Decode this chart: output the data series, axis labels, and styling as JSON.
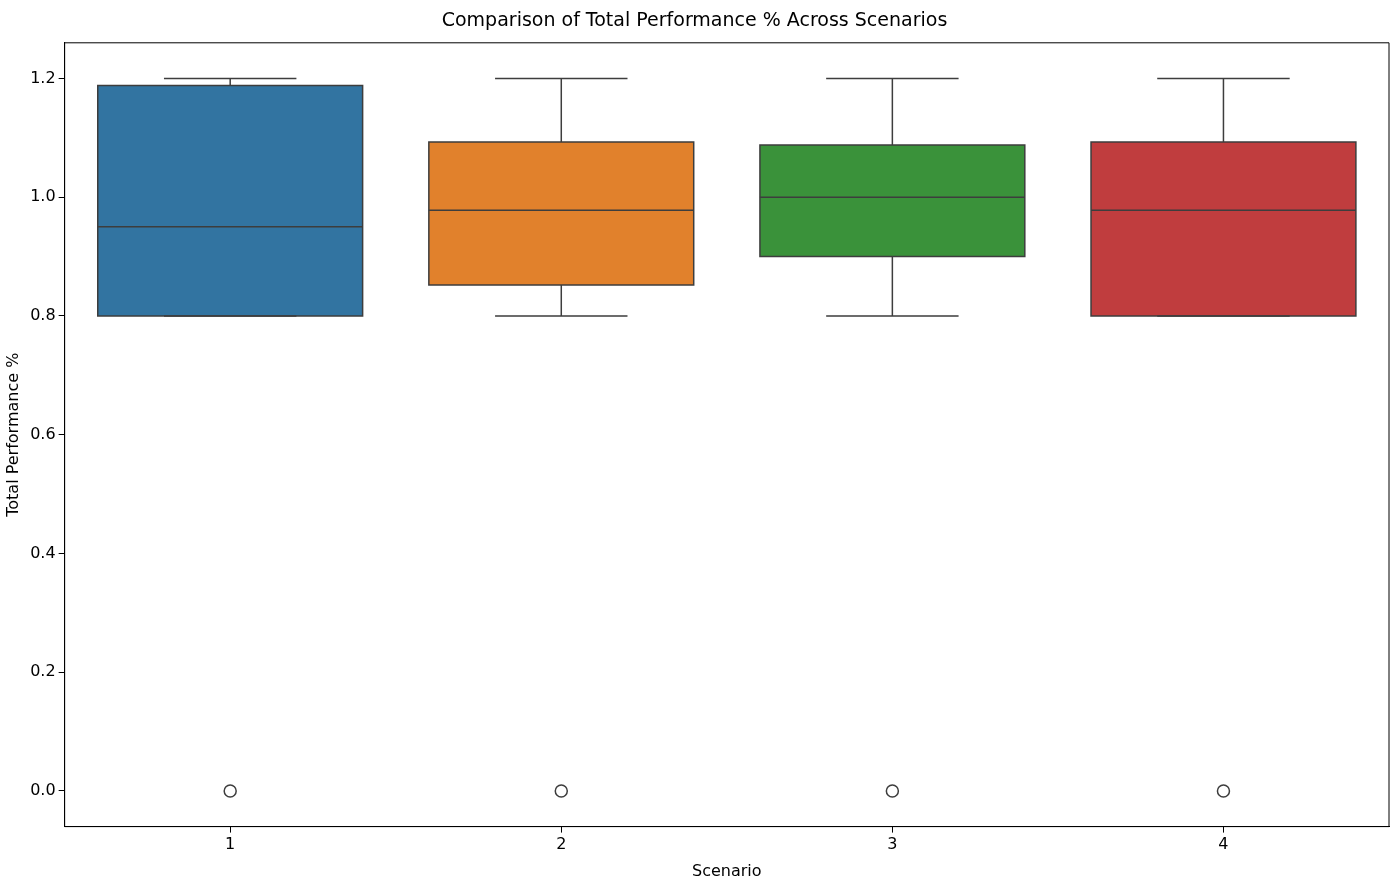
{
  "chart_data": {
    "type": "box",
    "title": "Comparison of Total Performance % Across Scenarios",
    "xlabel": "Scenario",
    "ylabel": "Total Performance %",
    "categories": [
      "1",
      "2",
      "3",
      "4"
    ],
    "colors": [
      "#3274a1",
      "#e1812c",
      "#3a923a",
      "#c03d3e"
    ],
    "boxes": [
      {
        "low": 0.8,
        "q1": 0.8,
        "median": 0.95,
        "q3": 1.188,
        "high": 1.2,
        "outliers": [
          0
        ]
      },
      {
        "low": 0.8,
        "q1": 0.852,
        "median": 0.978,
        "q3": 1.093,
        "high": 1.2,
        "outliers": [
          0
        ]
      },
      {
        "low": 0.8,
        "q1": 0.9,
        "median": 1.0,
        "q3": 1.088,
        "high": 1.2,
        "outliers": [
          0
        ]
      },
      {
        "low": 0.8,
        "q1": 0.8,
        "median": 0.978,
        "q3": 1.093,
        "high": 1.2,
        "outliers": [
          0
        ]
      }
    ],
    "ylim": [
      -0.06,
      1.26
    ],
    "yticks": [
      {
        "value": 0,
        "label": "0.0"
      },
      {
        "value": 0.2,
        "label": "0.2"
      },
      {
        "value": 0.4,
        "label": "0.4"
      },
      {
        "value": 0.6,
        "label": "0.6"
      },
      {
        "value": 0.8,
        "label": "0.8"
      },
      {
        "value": 1.0,
        "label": "1.0"
      },
      {
        "value": 1.2,
        "label": "1.2"
      }
    ],
    "grid": false,
    "legend": false
  }
}
